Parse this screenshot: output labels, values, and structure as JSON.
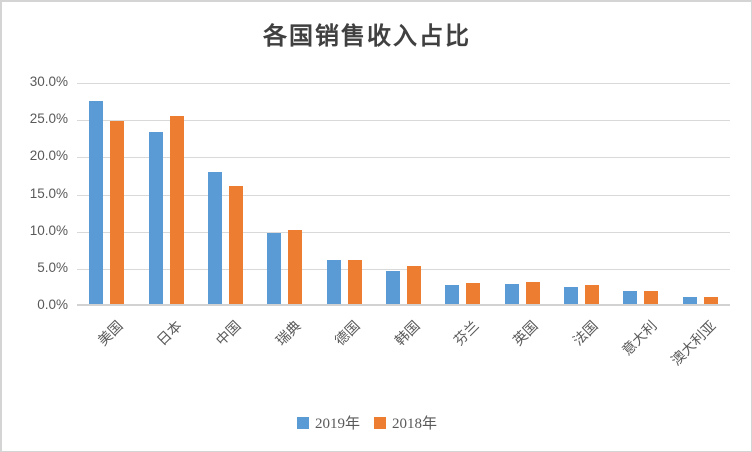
{
  "title": "各国销售收入占比",
  "chart_data": {
    "type": "bar",
    "title": "各国销售收入占比",
    "categories": [
      "美国",
      "日本",
      "中国",
      "瑞典",
      "德国",
      "韩国",
      "芬兰",
      "英国",
      "法国",
      "意大利",
      "澳大利亚"
    ],
    "series": [
      {
        "name": "2019年",
        "color": "#5B9BD5",
        "values": [
          27.3,
          23.1,
          17.7,
          9.5,
          5.9,
          4.5,
          2.5,
          2.7,
          2.3,
          1.7,
          0.9
        ]
      },
      {
        "name": "2018年",
        "color": "#ED7D31",
        "values": [
          24.6,
          25.3,
          15.9,
          10.0,
          5.9,
          5.1,
          2.8,
          3.0,
          2.6,
          1.8,
          1.0
        ]
      }
    ],
    "value_unit": "%",
    "ylim": [
      0,
      30
    ],
    "ytick_step": 5,
    "yticks": [
      "30.0%",
      "25.0%",
      "20.0%",
      "15.0%",
      "10.0%",
      "5.0%",
      "0.0%"
    ],
    "grid": "horizontal",
    "legend_position": "bottom"
  },
  "legend": {
    "items": [
      {
        "label": "2019年",
        "color": "#5B9BD5"
      },
      {
        "label": "2018年",
        "color": "#ED7D31"
      }
    ]
  },
  "colors": {
    "series_2019": "#5B9BD5",
    "series_2018": "#ED7D31",
    "gridline": "#D9D9D9",
    "axis_text": "#595959",
    "title_text": "#404040",
    "background": "#FFFFFF",
    "border": "#D4D4D4"
  }
}
